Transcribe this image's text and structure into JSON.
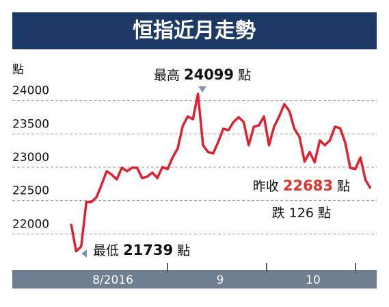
{
  "chart_data": {
    "type": "line",
    "title": "恒指近月走勢",
    "ylabel": "點",
    "x_labels": [
      "8/2016",
      "9",
      "10"
    ],
    "ylim": [
      21500,
      24500
    ],
    "yticks": [
      22000,
      22500,
      23000,
      23500,
      24000
    ],
    "grid": true,
    "series": [
      {
        "color": "#e0202e",
        "values": [
          22150,
          21739,
          21812,
          22479,
          22479,
          22550,
          22735,
          22940,
          22889,
          22817,
          22992,
          22940,
          22992,
          22992,
          22838,
          22858,
          22920,
          22838,
          23002,
          22971,
          23146,
          23279,
          23618,
          23761,
          23720,
          24099,
          23330,
          23227,
          23207,
          23381,
          23576,
          23555,
          23678,
          23750,
          23678,
          23330,
          23607,
          23627,
          23761,
          23330,
          23607,
          23761,
          23945,
          23843,
          23576,
          23453,
          23083,
          23227,
          23073,
          23402,
          23330,
          23402,
          23607,
          23586,
          23371,
          22991,
          22971,
          23145,
          22809,
          22683
        ]
      }
    ],
    "annotations": {
      "high": {
        "text": "最高",
        "value": 24099,
        "unit": "點"
      },
      "low": {
        "text": "最低",
        "value": 21739,
        "unit": "點"
      },
      "close": {
        "text": "昨收",
        "value": 22683,
        "unit": "點"
      },
      "change": {
        "text": "跌",
        "value": 126,
        "unit": "點"
      }
    }
  }
}
